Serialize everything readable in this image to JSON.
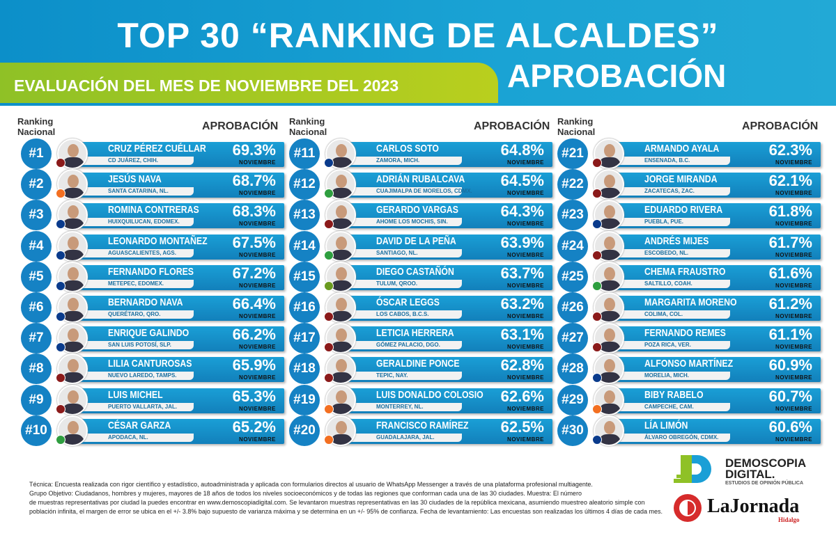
{
  "header": {
    "title": "TOP 30 “RANKING DE ALCALDES”",
    "subtitle": "EVALUACIÓN DEL MES DE NOVIEMBRE DEL 2023",
    "approval": "APROBACIÓN"
  },
  "columns": {
    "rank_label_1": "Ranking",
    "rank_label_2": "Nacional",
    "approval_label": "APROBACIÓN"
  },
  "month_label": "NOVIEMBRE",
  "colors": {
    "primary_blue": "#1582c4",
    "green": "#8fc126",
    "morena": "#8b1a1a",
    "mc": "#f36f21",
    "pan": "#0a3b8c",
    "pri": "#2e9e3f"
  },
  "rankings": [
    {
      "rank": "#1",
      "name": "CRUZ PÉREZ CUÉLLAR",
      "city": "CD JUÁREZ, CHIH.",
      "approval": "69.3%",
      "party_color": "#8b1a1a"
    },
    {
      "rank": "#2",
      "name": "JESÚS NAVA",
      "city": "SANTA CATARINA, NL.",
      "approval": "68.7%",
      "party_color": "#f36f21"
    },
    {
      "rank": "#3",
      "name": "ROMINA CONTRERAS",
      "city": "HUIXQUILUCAN, EDOMEX.",
      "approval": "68.3%",
      "party_color": "#0a3b8c"
    },
    {
      "rank": "#4",
      "name": "LEONARDO MONTAÑEZ",
      "city": "AGUASCALIENTES, AGS.",
      "approval": "67.5%",
      "party_color": "#0a3b8c"
    },
    {
      "rank": "#5",
      "name": "FERNANDO FLORES",
      "city": "METEPEC, EDOMEX.",
      "approval": "67.2%",
      "party_color": "#0a3b8c"
    },
    {
      "rank": "#6",
      "name": "BERNARDO NAVA",
      "city": "QUERÉTARO, QRO.",
      "approval": "66.4%",
      "party_color": "#0a3b8c"
    },
    {
      "rank": "#7",
      "name": "ENRIQUE GALINDO",
      "city": "SAN LUIS POTOSÍ, SLP.",
      "approval": "66.2%",
      "party_color": "#0a3b8c"
    },
    {
      "rank": "#8",
      "name": "LILIA CANTUROSAS",
      "city": "NUEVO LAREDO, TAMPS.",
      "approval": "65.9%",
      "party_color": "#8b1a1a"
    },
    {
      "rank": "#9",
      "name": "LUIS MICHEL",
      "city": "PUERTO VALLARTA, JAL.",
      "approval": "65.3%",
      "party_color": "#8b1a1a"
    },
    {
      "rank": "#10",
      "name": "CÉSAR GARZA",
      "city": "APODACA, NL.",
      "approval": "65.2%",
      "party_color": "#2e9e3f"
    },
    {
      "rank": "#11",
      "name": "CARLOS SOTO",
      "city": "ZAMORA, MICH.",
      "approval": "64.8%",
      "party_color": "#0a3b8c"
    },
    {
      "rank": "#12",
      "name": "ADRIÁN RUBALCAVA",
      "city": "CUAJIMALPA DE MORELOS, CDMX.",
      "approval": "64.5%",
      "party_color": "#2e9e3f"
    },
    {
      "rank": "#13",
      "name": "GERARDO VARGAS",
      "city": "AHOME LOS MOCHIS, SIN.",
      "approval": "64.3%",
      "party_color": "#8b1a1a"
    },
    {
      "rank": "#14",
      "name": "DAVID DE LA PEÑA",
      "city": "SANTIAGO, NL.",
      "approval": "63.9%",
      "party_color": "#2e9e3f"
    },
    {
      "rank": "#15",
      "name": "DIEGO CASTAÑÓN",
      "city": "TULUM, QROO.",
      "approval": "63.7%",
      "party_color": "#6a9a1f"
    },
    {
      "rank": "#16",
      "name": "ÓSCAR LEGGS",
      "city": "LOS CABOS, B.C.S.",
      "approval": "63.2%",
      "party_color": "#8b1a1a"
    },
    {
      "rank": "#17",
      "name": "LETICIA HERRERA",
      "city": "GÓMEZ PALACIO, DGO.",
      "approval": "63.1%",
      "party_color": "#8b1a1a"
    },
    {
      "rank": "#18",
      "name": "GERALDINE PONCE",
      "city": "TEPIC, NAY.",
      "approval": "62.8%",
      "party_color": "#8b1a1a"
    },
    {
      "rank": "#19",
      "name": "LUIS DONALDO COLOSIO",
      "city": "MONTERREY, NL.",
      "approval": "62.6%",
      "party_color": "#f36f21"
    },
    {
      "rank": "#20",
      "name": "FRANCISCO RAMÍREZ",
      "city": "GUADALAJARA, JAL.",
      "approval": "62.5%",
      "party_color": "#f36f21"
    },
    {
      "rank": "#21",
      "name": "ARMANDO AYALA",
      "city": "ENSENADA, B.C.",
      "approval": "62.3%",
      "party_color": "#8b1a1a"
    },
    {
      "rank": "#22",
      "name": "JORGE MIRANDA",
      "city": "ZACATECAS, ZAC.",
      "approval": "62.1%",
      "party_color": "#8b1a1a"
    },
    {
      "rank": "#23",
      "name": "EDUARDO RIVERA",
      "city": "PUEBLA, PUE.",
      "approval": "61.8%",
      "party_color": "#0a3b8c"
    },
    {
      "rank": "#24",
      "name": "ANDRÉS MIJES",
      "city": "ESCOBEDO, NL.",
      "approval": "61.7%",
      "party_color": "#8b1a1a"
    },
    {
      "rank": "#25",
      "name": "CHEMA FRAUSTRO",
      "city": "SALTILLO, COAH.",
      "approval": "61.6%",
      "party_color": "#2e9e3f"
    },
    {
      "rank": "#26",
      "name": "MARGARITA MORENO",
      "city": "COLIMA, COL.",
      "approval": "61.2%",
      "party_color": "#8b1a1a"
    },
    {
      "rank": "#27",
      "name": "FERNANDO REMES",
      "city": "POZA RICA, VER.",
      "approval": "61.1%",
      "party_color": "#8b1a1a"
    },
    {
      "rank": "#28",
      "name": "ALFONSO MARTÍNEZ",
      "city": "MORELIA, MICH.",
      "approval": "60.9%",
      "party_color": "#0a3b8c"
    },
    {
      "rank": "#29",
      "name": "BIBY RABELO",
      "city": "CAMPECHE, CAM.",
      "approval": "60.7%",
      "party_color": "#f36f21"
    },
    {
      "rank": "#30",
      "name": "LÍA LIMÓN",
      "city": "ÁLVARO OBREGÓN, CDMX.",
      "approval": "60.6%",
      "party_color": "#0a3b8c"
    }
  ],
  "footer": {
    "line1": "Técnica: Encuesta realizada con rigor científico y estadístico, autoadministrada y aplicada con formularios directos al usuario de WhatsApp Messenger a través de una plataforma profesional multiagente.",
    "line2": "Grupo Objetivo: Ciudadanos, hombres y mujeres, mayores de 18 años de todos los niveles socioeconómicos y de todas las regiones que conforman cada una de las 30 ciudades. Muestra: El número",
    "line3": "de muestras representativas por ciudad la puedes encontrar en www.demoscopiadigital.com. Se levantaron muestras representativas en las 30 ciudades de la república mexicana, asumiendo muestreo aleatorio simple con",
    "line4": "población infinita, el margen de error se ubica en el +/- 3.8% bajo supuesto de varianza máxima y se determina en un +/- 95% de confianza. Fecha de levantamiento: Las encuestas son realizadas los últimos 4 días de cada mes."
  },
  "logos": {
    "demoscopia_1": "DEMOSCOPIA",
    "demoscopia_2": "DIGITAL.",
    "demoscopia_tag": "ESTUDIOS DE OPINIÓN PÚBLICA",
    "jornada": "LaJornada",
    "jornada_sub": "Hidalgo"
  }
}
